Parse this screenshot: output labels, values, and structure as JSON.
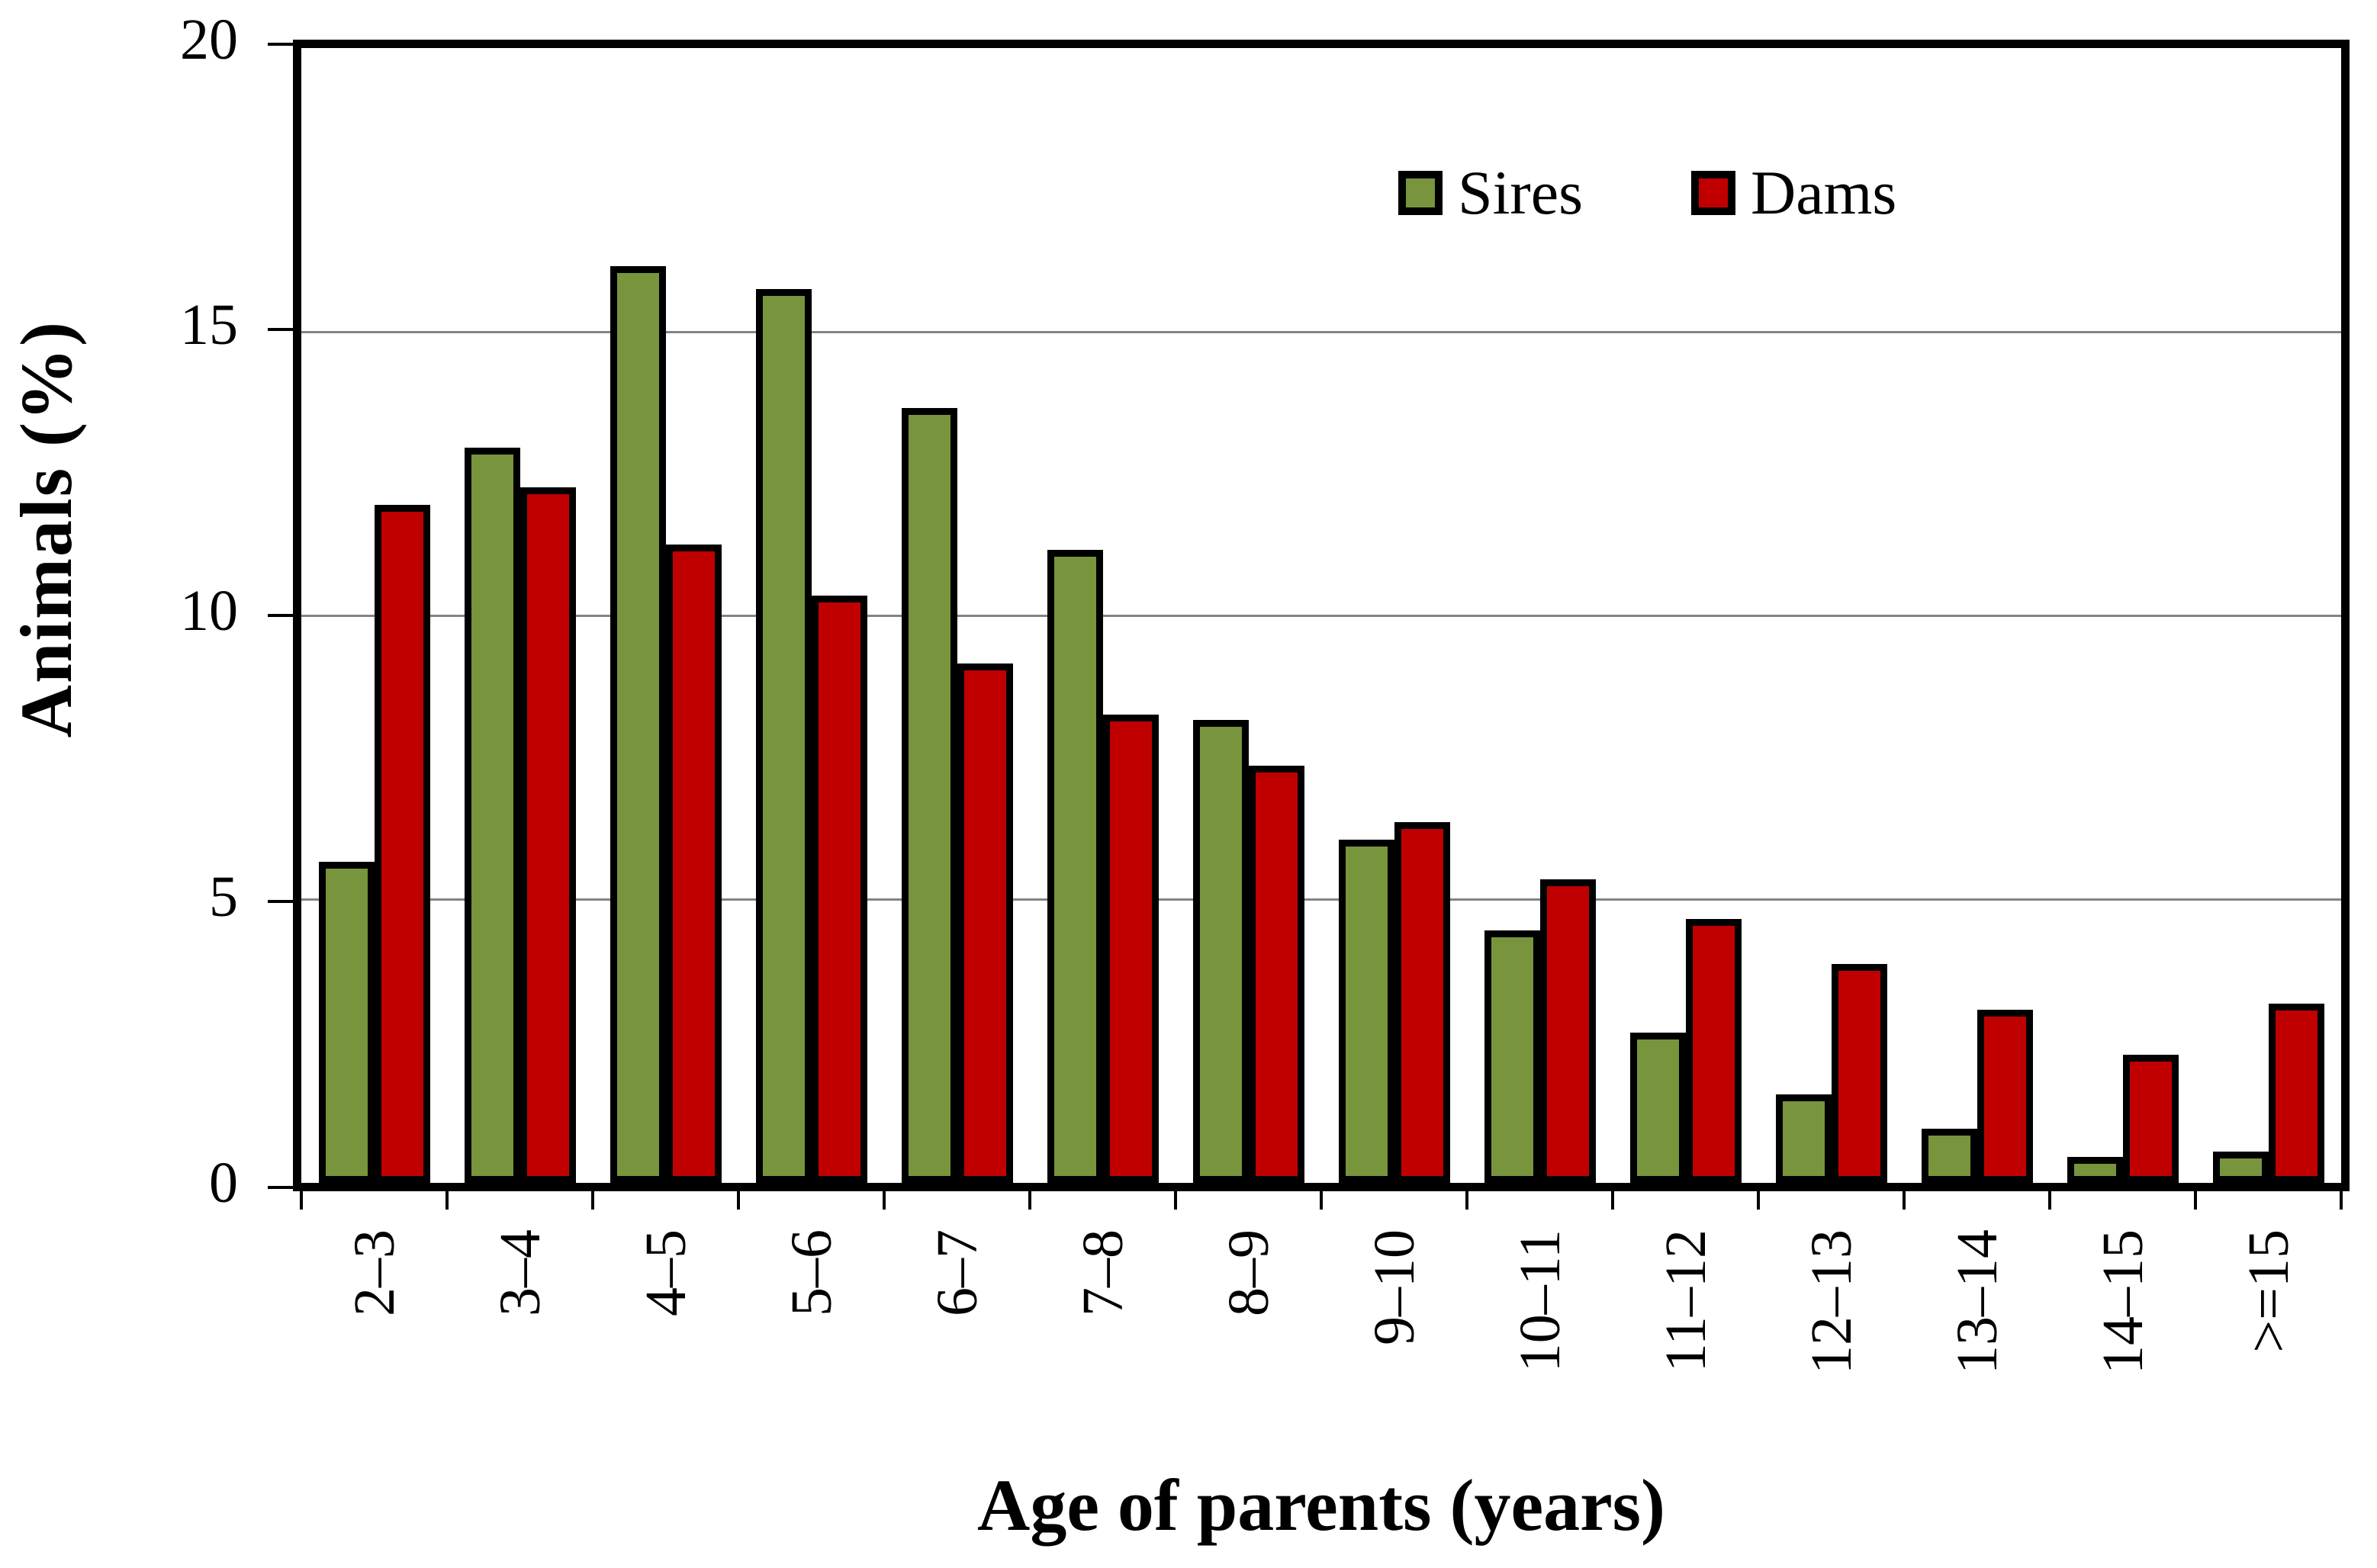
{
  "chart_data": {
    "type": "bar",
    "title": "",
    "xlabel": "Age of parents (years)",
    "ylabel": "Animals  (%)",
    "ylim": [
      0,
      20
    ],
    "yticks": [
      0,
      5,
      10,
      15,
      20
    ],
    "grid": "horizontal gridlines at 5, 10, 15",
    "legend_position": "inside top-right",
    "categories": [
      "2–3",
      "3–4",
      "4–5",
      "5–6",
      "6–7",
      "7–8",
      "8–9",
      "9–10",
      "10–11",
      "11–12",
      "12–13",
      "13–14",
      "14–15",
      ">=15"
    ],
    "series": [
      {
        "name": "Sires",
        "color": "#78943C",
        "values": [
          5.6,
          12.9,
          16.1,
          15.7,
          13.6,
          11.1,
          8.1,
          6.0,
          4.4,
          2.6,
          1.5,
          0.9,
          0.4,
          0.5
        ]
      },
      {
        "name": "Dams",
        "color": "#C00000",
        "values": [
          11.9,
          12.2,
          11.2,
          10.3,
          9.1,
          8.2,
          7.3,
          6.3,
          5.3,
          4.6,
          3.8,
          3.0,
          2.2,
          3.1
        ]
      }
    ],
    "colors": {
      "bar_border": "#000000",
      "axis": "#000000",
      "gridline": "#848484",
      "background": "#ffffff"
    }
  }
}
